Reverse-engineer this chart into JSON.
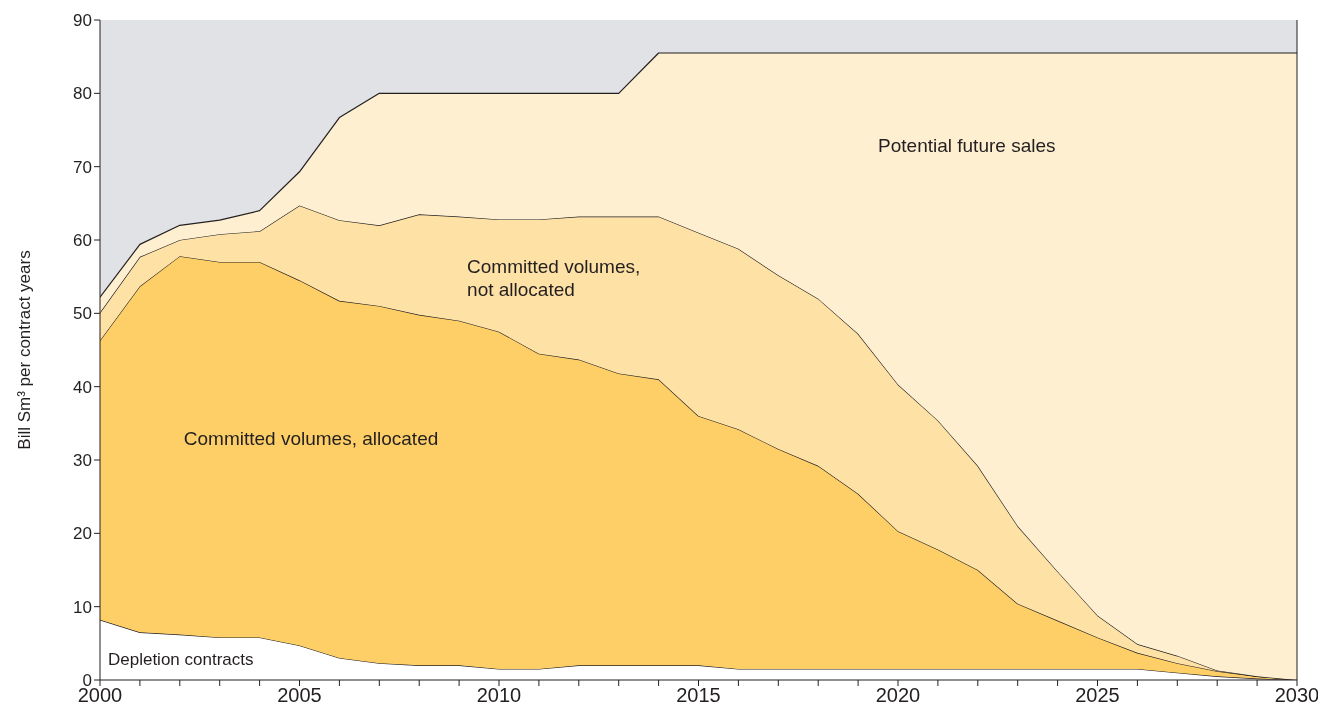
{
  "chart_data": {
    "type": "area",
    "stacked": true,
    "ylabel": "Bill Sm³ per contract years",
    "x": [
      2000,
      2001,
      2002,
      2003,
      2004,
      2005,
      2006,
      2007,
      2008,
      2009,
      2010,
      2011,
      2012,
      2013,
      2014,
      2015,
      2016,
      2017,
      2018,
      2019,
      2020,
      2021,
      2022,
      2023,
      2024,
      2025,
      2026,
      2027,
      2028,
      2029,
      2030
    ],
    "series": [
      {
        "name": "Depletion contracts",
        "color": "#ffffff",
        "values": [
          8.2,
          6.5,
          6.2,
          5.8,
          5.8,
          4.7,
          3.0,
          2.3,
          2.0,
          2.0,
          1.5,
          1.5,
          2.0,
          2.0,
          2.0,
          2.0,
          1.5,
          1.5,
          1.5,
          1.5,
          1.5,
          1.5,
          1.5,
          1.5,
          1.5,
          1.5,
          1.5,
          1.0,
          0.5,
          0.2,
          0
        ]
      },
      {
        "name": "Committed volumes, allocated",
        "color": "#fdcf66",
        "values": [
          38.1,
          47.2,
          51.6,
          51.2,
          51.2,
          49.8,
          48.7,
          48.7,
          47.8,
          47.0,
          46.0,
          43.0,
          41.7,
          39.8,
          39.0,
          34.0,
          32.7,
          30.0,
          27.7,
          23.9,
          18.8,
          16.3,
          13.5,
          8.9,
          6.6,
          4.3,
          2.2,
          1.3,
          0.7,
          0.3,
          0
        ]
      },
      {
        "name": "Committed volumes,\nnot allocated",
        "color": "#fde1a5",
        "values": [
          3.8,
          4.0,
          2.2,
          3.8,
          4.2,
          10.2,
          11.0,
          11.0,
          13.7,
          14.2,
          15.3,
          18.3,
          19.5,
          21.4,
          22.2,
          25.0,
          24.6,
          23.7,
          22.8,
          21.8,
          20.0,
          17.6,
          14.2,
          10.6,
          6.7,
          3.0,
          1.2,
          1.0,
          0.1,
          0,
          0
        ]
      },
      {
        "name": "Potential future sales",
        "color": "#feefd1",
        "values": [
          2.1,
          1.7,
          2.0,
          1.9,
          2.8,
          4.6,
          14.0,
          18.0,
          16.5,
          16.8,
          17.2,
          17.2,
          16.8,
          16.8,
          22.3,
          24.5,
          26.7,
          30.3,
          33.5,
          38.3,
          45.2,
          50.1,
          56.3,
          64.5,
          70.7,
          76.7,
          80.6,
          82.2,
          84.2,
          85.0,
          85.5
        ]
      }
    ],
    "xlim": [
      2000,
      2030
    ],
    "xticks": [
      2000,
      {
        "value": 2001,
        "label": null
      },
      {
        "value": 2002,
        "label": null
      },
      {
        "value": 2003,
        "label": null
      },
      {
        "value": 2004,
        "label": null
      },
      2005,
      {
        "value": 2006,
        "label": null
      },
      {
        "value": 2007,
        "label": null
      },
      {
        "value": 2008,
        "label": null
      },
      {
        "value": 2009,
        "label": null
      },
      2010,
      {
        "value": 2011,
        "label": null
      },
      {
        "value": 2012,
        "label": null
      },
      {
        "value": 2013,
        "label": null
      },
      {
        "value": 2014,
        "label": null
      },
      2015,
      {
        "value": 2016,
        "label": null
      },
      {
        "value": 2017,
        "label": null
      },
      {
        "value": 2018,
        "label": null
      },
      {
        "value": 2019,
        "label": null
      },
      2020,
      {
        "value": 2021,
        "label": null
      },
      {
        "value": 2022,
        "label": null
      },
      {
        "value": 2023,
        "label": null
      },
      {
        "value": 2024,
        "label": null
      },
      2025,
      {
        "value": 2026,
        "label": null
      },
      {
        "value": 2027,
        "label": null
      },
      {
        "value": 2028,
        "label": null
      },
      {
        "value": 2029,
        "label": null
      },
      2030
    ],
    "ylim": [
      0,
      90
    ],
    "yticks": [
      0,
      10,
      20,
      30,
      40,
      50,
      60,
      70,
      80,
      90
    ],
    "grid": false,
    "legend": false
  }
}
